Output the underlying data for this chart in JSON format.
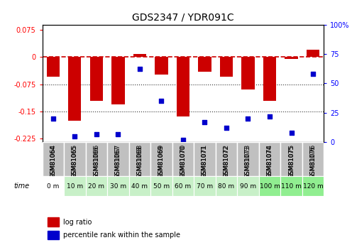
{
  "title": "GDS2347 / YDR091C",
  "samples": [
    "GSM81064",
    "GSM81065",
    "GSM81066",
    "GSM81067",
    "GSM81068",
    "GSM81069",
    "GSM81070",
    "GSM81071",
    "GSM81072",
    "GSM81073",
    "GSM81074",
    "GSM81075",
    "GSM81076"
  ],
  "time_labels": [
    "0 m",
    "10 m",
    "20 m",
    "30 m",
    "40 m",
    "50 m",
    "60 m",
    "70 m",
    "80 m",
    "90 m",
    "100 m",
    "110 m",
    "120 m"
  ],
  "log_ratio": [
    -0.055,
    -0.175,
    -0.12,
    -0.13,
    0.008,
    -0.048,
    -0.165,
    -0.04,
    -0.055,
    -0.09,
    -0.12,
    -0.005,
    0.02
  ],
  "percentile": [
    20,
    5,
    7,
    7,
    62,
    35,
    2,
    17,
    12,
    20,
    22,
    8,
    58
  ],
  "ylim_left": [
    -0.235,
    0.09
  ],
  "ylim_right": [
    0,
    100
  ],
  "yticks_left": [
    0.075,
    0,
    -0.075,
    -0.15,
    -0.225
  ],
  "yticks_right": [
    100,
    75,
    50,
    25,
    0
  ],
  "bar_color": "#cc0000",
  "dot_color": "#0000cc",
  "zero_line_color": "#cc0000",
  "dotted_line_color": "#333333",
  "sample_bg_color": "#c0c0c0",
  "time_bg_colors": [
    "#ffffff",
    "#c8f0c8",
    "#c8f0c8",
    "#c8f0c8",
    "#c8f0c8",
    "#c8f0c8",
    "#c8f0c8",
    "#c8f0c8",
    "#c8f0c8",
    "#c8f0c8",
    "#90ee90",
    "#90ee90",
    "#90ee90"
  ],
  "legend_items": [
    "log ratio",
    "percentile rank within the sample"
  ],
  "bar_width": 0.6
}
